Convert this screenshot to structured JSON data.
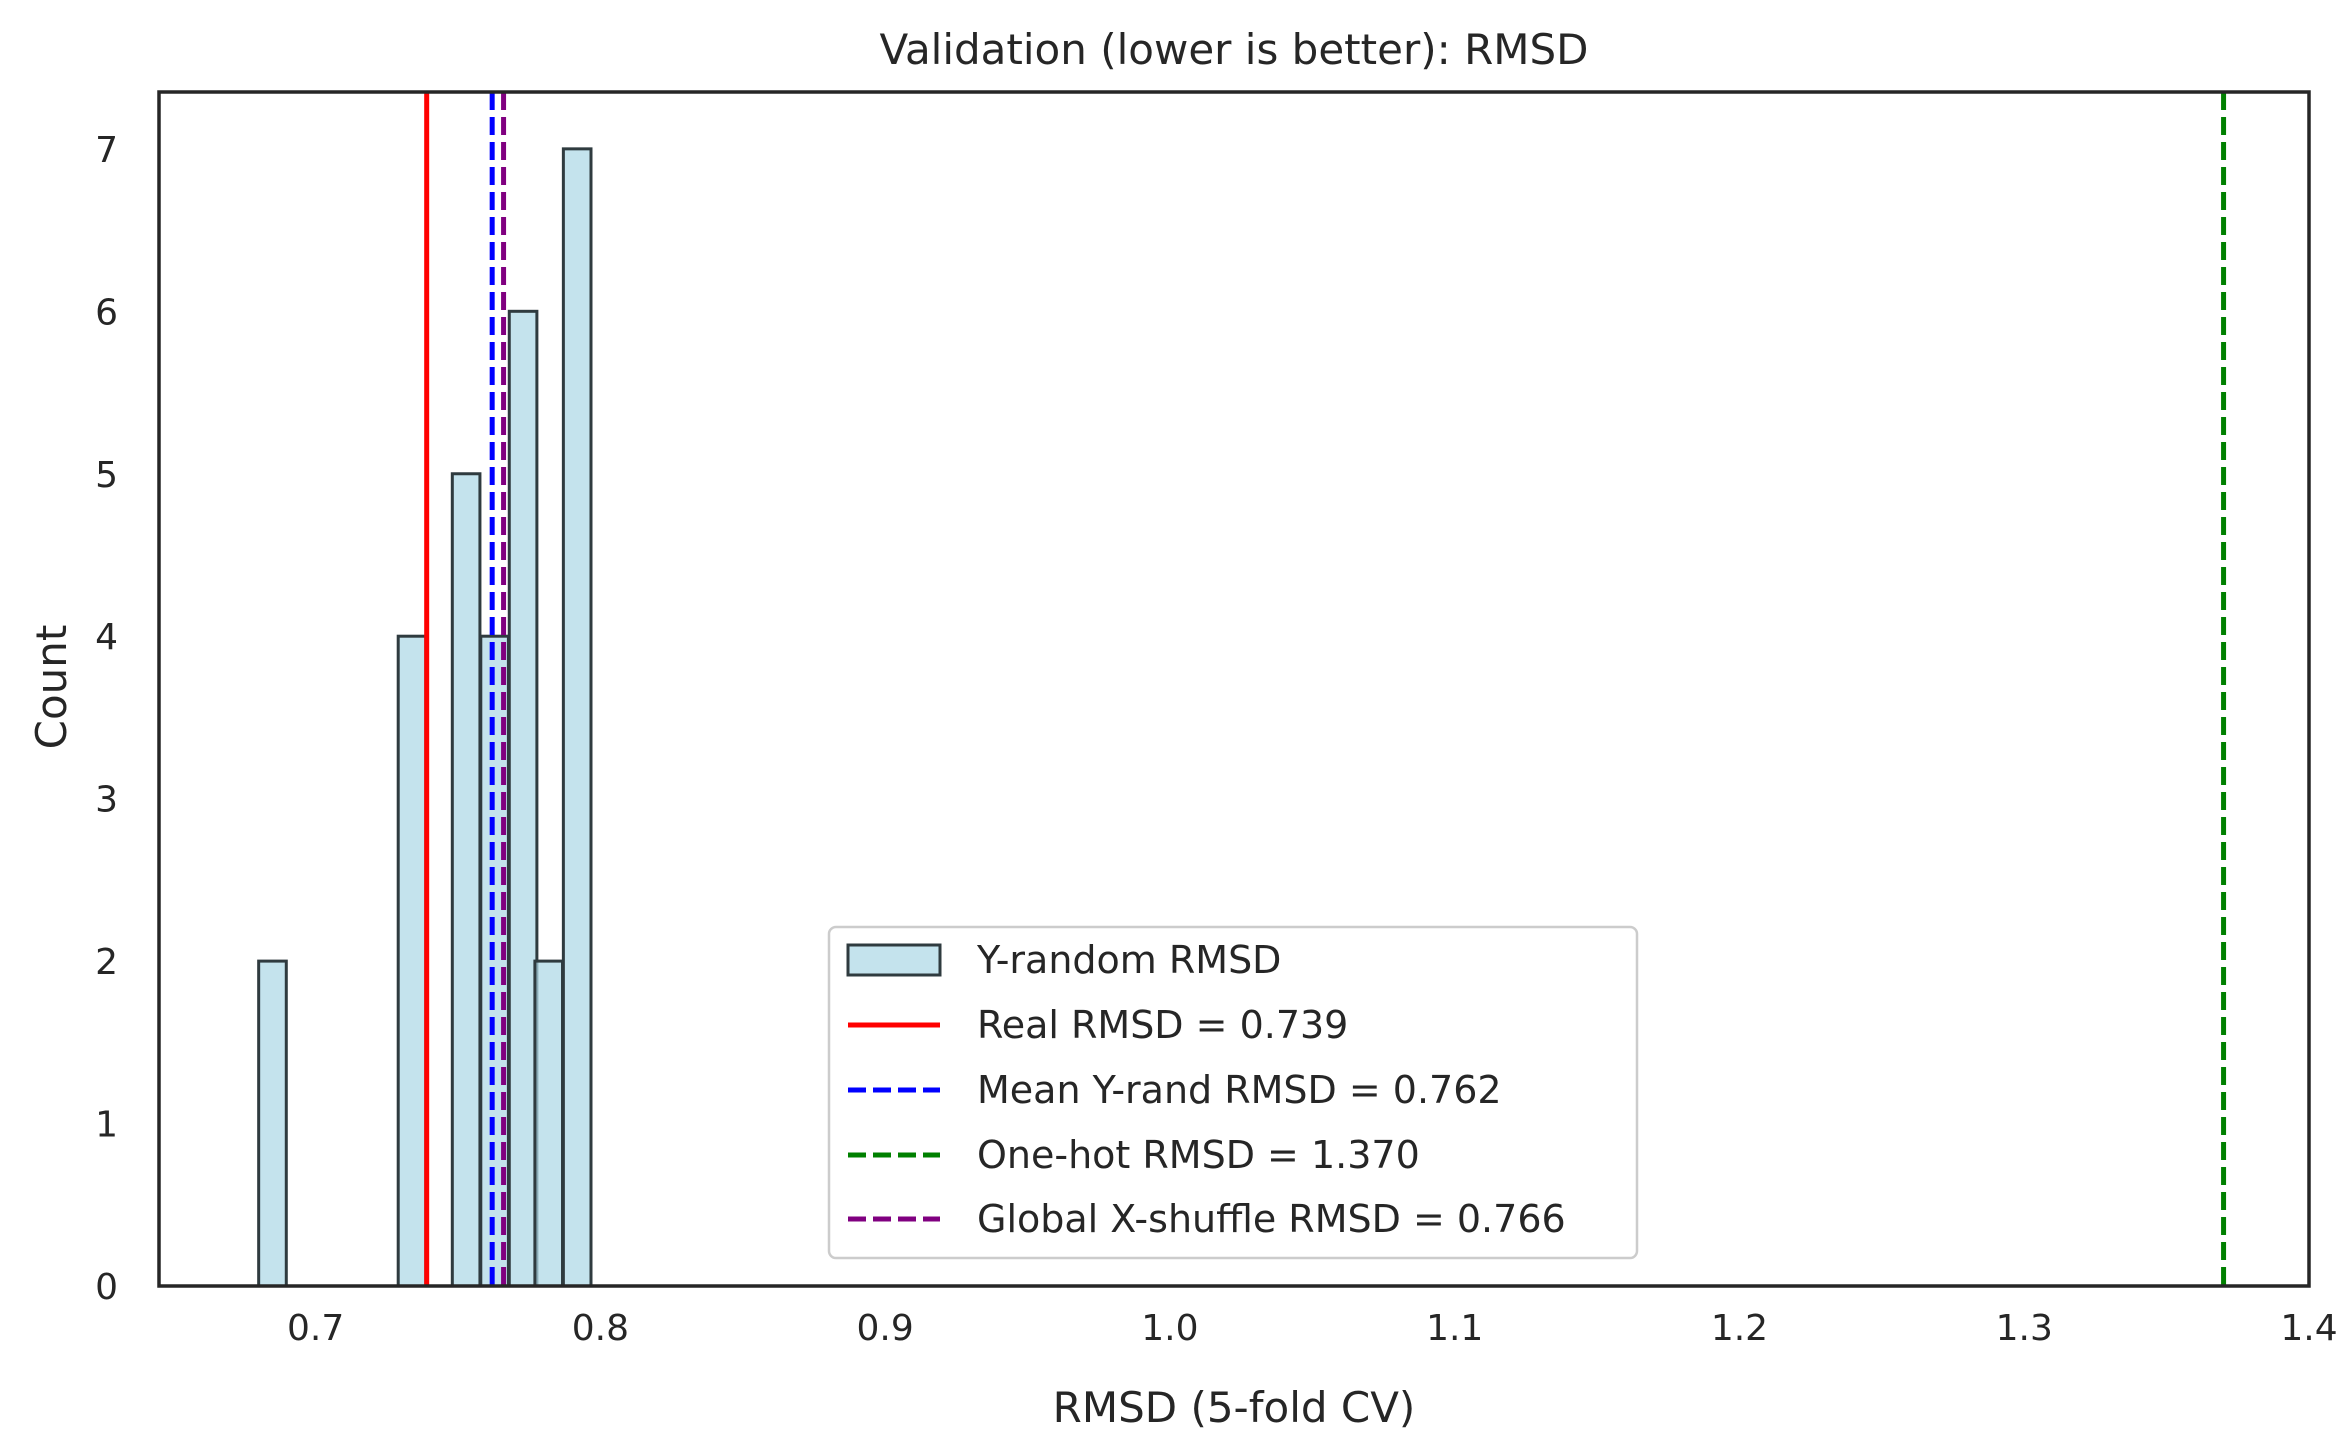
{
  "chart_data": {
    "type": "bar",
    "title": "Validation (lower is better): RMSD",
    "xlabel": "RMSD (5-fold CV)",
    "ylabel": "Count",
    "xlim": [
      0.645,
      1.4
    ],
    "ylim": [
      0,
      7.35
    ],
    "xticks": [
      "0.7",
      "0.8",
      "0.9",
      "1.0",
      "1.1",
      "1.2",
      "1.3",
      "1.4"
    ],
    "yticks": [
      "0",
      "1",
      "2",
      "3",
      "4",
      "5",
      "6",
      "7"
    ],
    "grid": false,
    "legend_position": "lower center",
    "histogram": {
      "name": "Y-random RMSD",
      "bin_width": 0.0097,
      "bins": [
        {
          "x0": 0.68,
          "count": 2
        },
        {
          "x0": 0.729,
          "count": 4
        },
        {
          "x0": 0.748,
          "count": 5
        },
        {
          "x0": 0.758,
          "count": 4
        },
        {
          "x0": 0.768,
          "count": 6
        },
        {
          "x0": 0.777,
          "count": 2
        },
        {
          "x0": 0.787,
          "count": 7
        }
      ],
      "fill": "#add8e6",
      "edge": "#2f3b3f"
    },
    "reference_lines": [
      {
        "label": "Real RMSD = 0.739",
        "x": 0.739,
        "color": "#ff0000",
        "style": "solid"
      },
      {
        "label": "Mean Y-rand RMSD = 0.762",
        "x": 0.762,
        "color": "#0000ff",
        "style": "dashed"
      },
      {
        "label": "One-hot RMSD = 1.370",
        "x": 1.37,
        "color": "#008000",
        "style": "dashed"
      },
      {
        "label": "Global X-shuffle RMSD = 0.766",
        "x": 0.766,
        "color": "#800080",
        "style": "dashed"
      }
    ]
  }
}
